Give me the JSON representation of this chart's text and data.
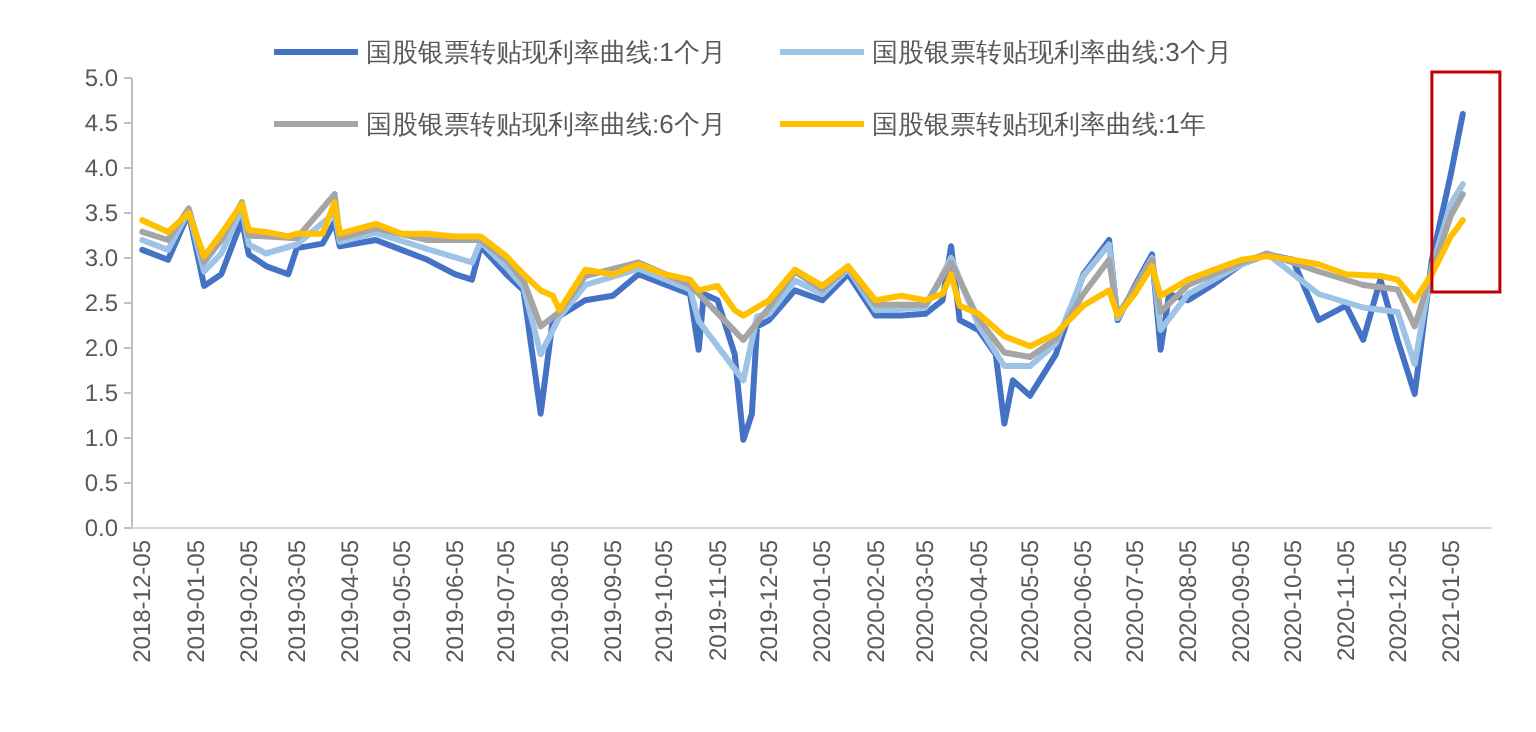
{
  "chart_data": {
    "type": "line",
    "legend": "top",
    "line_style": "solid",
    "xlim": [
      "2018-11-29",
      "2021-01-29"
    ],
    "xticks": [
      "2018-12-05",
      "2019-01-05",
      "2019-02-05",
      "2019-03-05",
      "2019-04-05",
      "2019-05-05",
      "2019-06-05",
      "2019-07-05",
      "2019-08-05",
      "2019-09-05",
      "2019-10-05",
      "2019-11-05",
      "2019-12-05",
      "2020-01-05",
      "2020-02-05",
      "2020-03-05",
      "2020-04-05",
      "2020-05-05",
      "2020-06-05",
      "2020-07-05",
      "2020-08-05",
      "2020-09-05",
      "2020-10-05",
      "2020-11-05",
      "2020-12-05",
      "2021-01-05"
    ],
    "ylim": [
      0,
      5
    ],
    "yticks": [
      {
        "value": 0,
        "label": "0.0"
      },
      {
        "value": 0.5,
        "label": "0.5"
      },
      {
        "value": 1,
        "label": "1.0"
      },
      {
        "value": 1.5,
        "label": "1.5"
      },
      {
        "value": 2,
        "label": "2.0"
      },
      {
        "value": 2.5,
        "label": "2.5"
      },
      {
        "value": 3,
        "label": "3.0"
      },
      {
        "value": 3.5,
        "label": "3.5"
      },
      {
        "value": 4,
        "label": "4.0"
      },
      {
        "value": 4.5,
        "label": "4.5"
      },
      {
        "value": 5,
        "label": "5.0"
      }
    ],
    "series": [
      {
        "name": "国股银票转贴现利率曲线:1个月",
        "color": "#4472c4",
        "x": [
          "2018-12-05",
          "2018-12-20",
          "2019-01-01",
          "2019-01-10",
          "2019-01-20",
          "2019-02-01",
          "2019-02-05",
          "2019-02-15",
          "2019-02-28",
          "2019-03-05",
          "2019-03-20",
          "2019-03-27",
          "2019-03-30",
          "2019-04-20",
          "2019-05-05",
          "2019-05-20",
          "2019-06-05",
          "2019-06-15",
          "2019-06-20",
          "2019-07-05",
          "2019-07-15",
          "2019-07-25",
          "2019-08-01",
          "2019-08-20",
          "2019-09-05",
          "2019-09-20",
          "2019-10-05",
          "2019-10-20",
          "2019-10-25",
          "2019-10-28",
          "2019-11-05",
          "2019-11-15",
          "2019-11-20",
          "2019-11-25",
          "2019-11-28",
          "2019-12-05",
          "2019-12-20",
          "2020-01-05",
          "2020-01-20",
          "2020-02-05",
          "2020-02-20",
          "2020-03-05",
          "2020-03-15",
          "2020-03-20",
          "2020-03-25",
          "2020-04-05",
          "2020-04-15",
          "2020-04-20",
          "2020-04-25",
          "2020-05-05",
          "2020-05-20",
          "2020-06-05",
          "2020-06-20",
          "2020-06-25",
          "2020-07-05",
          "2020-07-15",
          "2020-07-20",
          "2020-07-25",
          "2020-08-05",
          "2020-08-20",
          "2020-09-05",
          "2020-09-20",
          "2020-10-05",
          "2020-10-20",
          "2020-11-05",
          "2020-11-15",
          "2020-11-25",
          "2020-12-05",
          "2020-12-15",
          "2020-12-25",
          "2021-01-05",
          "2021-01-12"
        ],
        "values": [
          3.09,
          2.98,
          3.5,
          2.69,
          2.82,
          3.42,
          3.04,
          2.91,
          2.82,
          3.11,
          3.16,
          3.4,
          3.13,
          3.2,
          3.09,
          2.98,
          2.82,
          2.76,
          3.13,
          2.82,
          2.64,
          1.27,
          2.31,
          2.53,
          2.58,
          2.82,
          2.71,
          2.6,
          1.98,
          2.6,
          2.53,
          1.93,
          0.98,
          1.27,
          2.24,
          2.31,
          2.64,
          2.53,
          2.82,
          2.36,
          2.36,
          2.38,
          2.53,
          3.13,
          2.31,
          2.2,
          1.93,
          1.16,
          1.64,
          1.47,
          1.93,
          2.82,
          3.2,
          2.31,
          2.69,
          3.04,
          1.98,
          2.6,
          2.53,
          2.71,
          2.93,
          3.04,
          2.98,
          2.31,
          2.47,
          2.09,
          2.76,
          2.09,
          1.49,
          2.98,
          3.93,
          4.6
        ]
      },
      {
        "name": "国股银票转贴现利率曲线:3个月",
        "color": "#9dc3e6",
        "x": [
          "2018-12-05",
          "2018-12-20",
          "2019-01-01",
          "2019-01-10",
          "2019-01-20",
          "2019-02-01",
          "2019-02-05",
          "2019-02-15",
          "2019-03-05",
          "2019-03-27",
          "2019-03-30",
          "2019-04-20",
          "2019-05-20",
          "2019-06-15",
          "2019-06-20",
          "2019-07-05",
          "2019-07-15",
          "2019-07-25",
          "2019-08-05",
          "2019-08-20",
          "2019-09-20",
          "2019-10-20",
          "2019-10-25",
          "2019-11-20",
          "2019-11-28",
          "2019-12-05",
          "2019-12-20",
          "2020-01-05",
          "2020-01-20",
          "2020-02-05",
          "2020-03-05",
          "2020-03-20",
          "2020-04-05",
          "2020-04-20",
          "2020-05-05",
          "2020-05-20",
          "2020-06-05",
          "2020-06-20",
          "2020-06-25",
          "2020-07-15",
          "2020-07-20",
          "2020-08-05",
          "2020-09-05",
          "2020-09-20",
          "2020-10-20",
          "2020-11-15",
          "2020-12-05",
          "2020-12-15",
          "2020-12-25",
          "2021-01-05",
          "2021-01-12"
        ],
        "values": [
          3.2,
          3.09,
          3.52,
          2.85,
          3.05,
          3.55,
          3.15,
          3.05,
          3.15,
          3.5,
          3.18,
          3.28,
          3.1,
          2.95,
          3.18,
          2.9,
          2.68,
          1.93,
          2.35,
          2.7,
          2.88,
          2.65,
          2.3,
          1.64,
          2.35,
          2.38,
          2.75,
          2.6,
          2.88,
          2.42,
          2.45,
          3.0,
          2.25,
          1.8,
          1.8,
          2.05,
          2.8,
          3.15,
          2.33,
          3.0,
          2.2,
          2.6,
          2.93,
          3.05,
          2.6,
          2.45,
          2.4,
          1.82,
          2.9,
          3.6,
          3.82
        ]
      },
      {
        "name": "国股银票转贴现利率曲线:6个月",
        "color": "#a5a5a5",
        "x": [
          "2018-12-05",
          "2018-12-20",
          "2019-01-01",
          "2019-01-10",
          "2019-01-20",
          "2019-02-01",
          "2019-02-05",
          "2019-03-05",
          "2019-03-27",
          "2019-03-30",
          "2019-04-20",
          "2019-05-20",
          "2019-06-20",
          "2019-07-05",
          "2019-07-15",
          "2019-07-25",
          "2019-08-05",
          "2019-08-20",
          "2019-09-20",
          "2019-10-20",
          "2019-11-20",
          "2019-12-05",
          "2019-12-20",
          "2020-01-05",
          "2020-01-20",
          "2020-02-05",
          "2020-03-05",
          "2020-03-20",
          "2020-04-05",
          "2020-04-20",
          "2020-05-05",
          "2020-05-20",
          "2020-06-05",
          "2020-06-20",
          "2020-06-25",
          "2020-07-15",
          "2020-07-20",
          "2020-08-05",
          "2020-09-05",
          "2020-09-20",
          "2020-10-20",
          "2020-11-15",
          "2020-12-05",
          "2020-12-15",
          "2020-12-25",
          "2021-01-05",
          "2021-01-12"
        ],
        "values": [
          3.29,
          3.2,
          3.55,
          2.95,
          3.2,
          3.62,
          3.25,
          3.22,
          3.71,
          3.22,
          3.33,
          3.2,
          3.2,
          2.98,
          2.75,
          2.24,
          2.4,
          2.8,
          2.95,
          2.7,
          2.09,
          2.45,
          2.85,
          2.65,
          2.9,
          2.48,
          2.48,
          2.95,
          2.32,
          1.95,
          1.9,
          2.1,
          2.6,
          2.98,
          2.36,
          2.98,
          2.4,
          2.7,
          2.95,
          3.05,
          2.85,
          2.7,
          2.65,
          2.24,
          2.85,
          3.47,
          3.71
        ]
      },
      {
        "name": "国股银票转贴现利率曲线:1年",
        "color": "#ffc000",
        "x": [
          "2018-12-05",
          "2018-12-20",
          "2019-01-01",
          "2019-01-10",
          "2019-01-20",
          "2019-02-01",
          "2019-02-05",
          "2019-02-15",
          "2019-02-28",
          "2019-03-05",
          "2019-03-20",
          "2019-03-27",
          "2019-03-30",
          "2019-04-20",
          "2019-05-05",
          "2019-05-20",
          "2019-06-05",
          "2019-06-20",
          "2019-07-05",
          "2019-07-15",
          "2019-07-25",
          "2019-08-01",
          "2019-08-05",
          "2019-08-20",
          "2019-09-05",
          "2019-09-20",
          "2019-10-05",
          "2019-10-20",
          "2019-10-25",
          "2019-11-05",
          "2019-11-15",
          "2019-11-20",
          "2019-12-05",
          "2019-12-20",
          "2020-01-05",
          "2020-01-20",
          "2020-02-05",
          "2020-02-20",
          "2020-03-05",
          "2020-03-15",
          "2020-03-20",
          "2020-03-25",
          "2020-04-05",
          "2020-04-20",
          "2020-05-05",
          "2020-05-20",
          "2020-06-05",
          "2020-06-20",
          "2020-06-25",
          "2020-07-05",
          "2020-07-15",
          "2020-07-20",
          "2020-08-05",
          "2020-08-20",
          "2020-09-05",
          "2020-09-20",
          "2020-10-05",
          "2020-10-20",
          "2020-11-05",
          "2020-11-25",
          "2020-12-05",
          "2020-12-15",
          "2020-12-25",
          "2021-01-05",
          "2021-01-12"
        ],
        "values": [
          3.42,
          3.29,
          3.5,
          3.02,
          3.27,
          3.6,
          3.31,
          3.29,
          3.24,
          3.27,
          3.27,
          3.62,
          3.27,
          3.38,
          3.27,
          3.27,
          3.24,
          3.24,
          3.02,
          2.82,
          2.64,
          2.58,
          2.42,
          2.87,
          2.82,
          2.93,
          2.82,
          2.76,
          2.64,
          2.69,
          2.42,
          2.36,
          2.53,
          2.87,
          2.69,
          2.91,
          2.53,
          2.58,
          2.53,
          2.6,
          2.82,
          2.47,
          2.38,
          2.13,
          2.02,
          2.16,
          2.47,
          2.64,
          2.36,
          2.6,
          2.91,
          2.58,
          2.76,
          2.87,
          2.98,
          3.02,
          2.98,
          2.93,
          2.82,
          2.8,
          2.76,
          2.53,
          2.82,
          3.24,
          3.42
        ]
      }
    ]
  }
}
